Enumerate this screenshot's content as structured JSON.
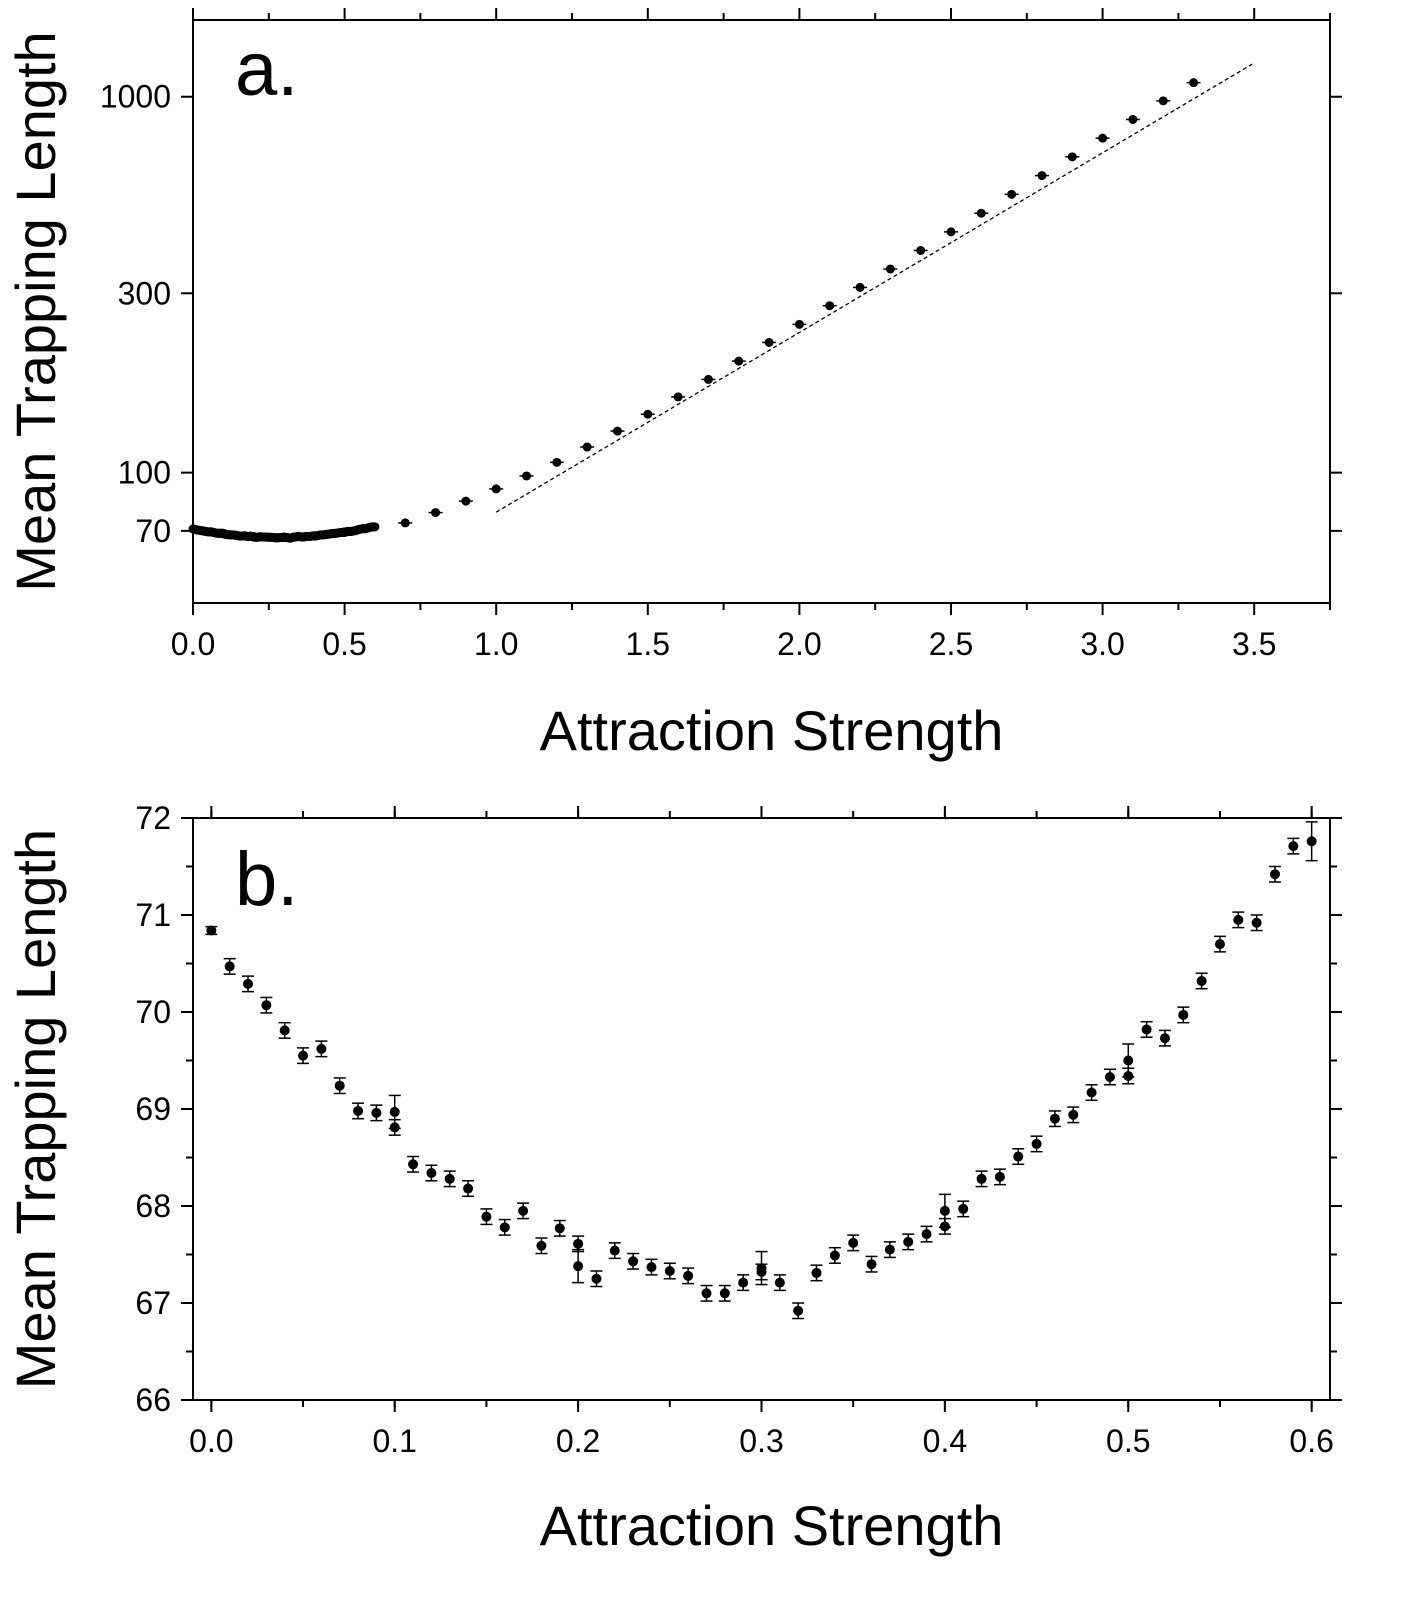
{
  "chart_data": [
    {
      "type": "scatter",
      "panel_label": "a.",
      "xlabel": "Attraction Strength",
      "ylabel": "Mean Trapping Length",
      "xlim": [
        0.0,
        3.75
      ],
      "ylim": [
        45,
        1600
      ],
      "y_scale": "log",
      "x_ticks": [
        "0.0",
        "0.5",
        "1.0",
        "1.5",
        "2.0",
        "2.5",
        "3.0",
        "3.5"
      ],
      "x_tick_values": [
        0,
        0.5,
        1.0,
        1.5,
        2.0,
        2.5,
        3.0,
        3.5
      ],
      "y_ticks": [
        "70",
        "100",
        "300",
        "1000"
      ],
      "y_tick_values": [
        70,
        100,
        300,
        1000
      ],
      "series": [
        {
          "values_points": [
            [
              0.7,
              73.5
            ],
            [
              0.8,
              78.3
            ],
            [
              0.9,
              84.0
            ],
            [
              1.0,
              90.5
            ],
            [
              1.1,
              98.0
            ],
            [
              1.2,
              106.5
            ],
            [
              1.3,
              117.0
            ],
            [
              1.4,
              129.0
            ],
            [
              1.5,
              143.0
            ],
            [
              1.6,
              159.0
            ],
            [
              1.7,
              177.0
            ],
            [
              1.8,
              198.0
            ],
            [
              1.9,
              222.0
            ],
            [
              2.0,
              248.0
            ],
            [
              2.1,
              278.0
            ],
            [
              2.2,
              311.0
            ],
            [
              2.3,
              348.0
            ],
            [
              2.4,
              390.0
            ],
            [
              2.5,
              437.0
            ],
            [
              2.6,
              490.0
            ],
            [
              2.7,
              550.0
            ],
            [
              2.8,
              617.0
            ],
            [
              2.9,
              692.0
            ],
            [
              3.0,
              776.0
            ],
            [
              3.1,
              870.0
            ],
            [
              3.2,
              975.0
            ],
            [
              3.3,
              1090.0
            ]
          ]
        }
      ],
      "fit_line": [
        [
          1.0,
          78.5
        ],
        [
          3.5,
          1230.0
        ]
      ]
    },
    {
      "type": "scatter",
      "panel_label": "b.",
      "xlabel": "Attraction Strength",
      "ylabel": "Mean Trapping Length",
      "xlim": [
        -0.01,
        0.61
      ],
      "ylim": [
        66,
        72
      ],
      "x_ticks": [
        "0.0",
        "0.1",
        "0.2",
        "0.3",
        "0.4",
        "0.5",
        "0.6"
      ],
      "x_tick_values": [
        0,
        0.1,
        0.2,
        0.3,
        0.4,
        0.5,
        0.6
      ],
      "y_ticks": [
        "66",
        "67",
        "68",
        "69",
        "70",
        "71",
        "72"
      ],
      "y_tick_values": [
        66,
        67,
        68,
        69,
        70,
        71,
        72
      ],
      "series": [
        {
          "points": [
            [
              0.0,
              70.84,
              0.04
            ],
            [
              0.01,
              70.47,
              0.08
            ],
            [
              0.02,
              70.29,
              0.08
            ],
            [
              0.03,
              70.07,
              0.08
            ],
            [
              0.04,
              69.81,
              0.08
            ],
            [
              0.05,
              69.55,
              0.08
            ],
            [
              0.06,
              69.62,
              0.08
            ],
            [
              0.07,
              69.24,
              0.08
            ],
            [
              0.08,
              68.98,
              0.08
            ],
            [
              0.09,
              68.96,
              0.08
            ],
            [
              0.1,
              68.97,
              0.17
            ],
            [
              0.1,
              68.81,
              0.08
            ],
            [
              0.11,
              68.43,
              0.08
            ],
            [
              0.12,
              68.34,
              0.08
            ],
            [
              0.13,
              68.28,
              0.08
            ],
            [
              0.14,
              68.18,
              0.08
            ],
            [
              0.15,
              67.89,
              0.08
            ],
            [
              0.16,
              67.78,
              0.08
            ],
            [
              0.17,
              67.95,
              0.08
            ],
            [
              0.18,
              67.59,
              0.08
            ],
            [
              0.19,
              67.77,
              0.08
            ],
            [
              0.2,
              67.61,
              0.08
            ],
            [
              0.2,
              67.38,
              0.17
            ],
            [
              0.21,
              67.25,
              0.08
            ],
            [
              0.22,
              67.54,
              0.08
            ],
            [
              0.23,
              67.43,
              0.08
            ],
            [
              0.24,
              67.37,
              0.08
            ],
            [
              0.25,
              67.33,
              0.08
            ],
            [
              0.26,
              67.28,
              0.08
            ],
            [
              0.27,
              67.1,
              0.08
            ],
            [
              0.28,
              67.1,
              0.08
            ],
            [
              0.29,
              67.21,
              0.08
            ],
            [
              0.3,
              67.36,
              0.17
            ],
            [
              0.3,
              67.32,
              0.08
            ],
            [
              0.31,
              67.21,
              0.08
            ],
            [
              0.32,
              66.92,
              0.08
            ],
            [
              0.33,
              67.31,
              0.08
            ],
            [
              0.34,
              67.49,
              0.08
            ],
            [
              0.35,
              67.62,
              0.08
            ],
            [
              0.36,
              67.4,
              0.08
            ],
            [
              0.37,
              67.55,
              0.08
            ],
            [
              0.38,
              67.63,
              0.08
            ],
            [
              0.39,
              67.71,
              0.08
            ],
            [
              0.4,
              67.95,
              0.17
            ],
            [
              0.4,
              67.79,
              0.08
            ],
            [
              0.41,
              67.97,
              0.08
            ],
            [
              0.42,
              68.28,
              0.08
            ],
            [
              0.43,
              68.3,
              0.08
            ],
            [
              0.44,
              68.51,
              0.08
            ],
            [
              0.45,
              68.64,
              0.08
            ],
            [
              0.46,
              68.9,
              0.08
            ],
            [
              0.47,
              68.94,
              0.08
            ],
            [
              0.48,
              69.17,
              0.08
            ],
            [
              0.49,
              69.33,
              0.08
            ],
            [
              0.5,
              69.5,
              0.17
            ],
            [
              0.5,
              69.34,
              0.08
            ],
            [
              0.51,
              69.82,
              0.08
            ],
            [
              0.52,
              69.73,
              0.08
            ],
            [
              0.53,
              69.97,
              0.08
            ],
            [
              0.54,
              70.32,
              0.08
            ],
            [
              0.55,
              70.7,
              0.08
            ],
            [
              0.56,
              70.95,
              0.08
            ],
            [
              0.57,
              70.92,
              0.08
            ],
            [
              0.58,
              71.42,
              0.08
            ],
            [
              0.59,
              71.71,
              0.08
            ],
            [
              0.6,
              71.76,
              0.2
            ]
          ]
        }
      ]
    }
  ]
}
